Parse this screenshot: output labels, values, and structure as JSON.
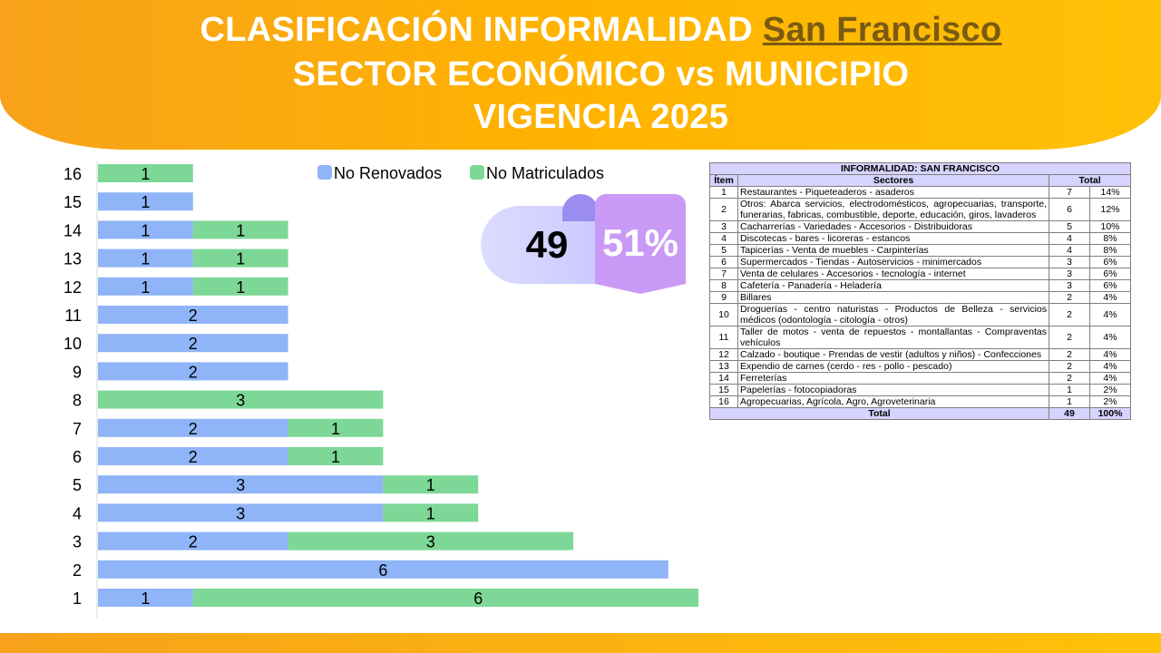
{
  "header": {
    "line1_prefix": "CLASIFICACIÓN INFORMALIDAD ",
    "line1_highlight": "San Francisco",
    "line2": "SECTOR ECONÓMICO vs MUNICIPIO",
    "line3": "VIGENCIA 2025"
  },
  "badge": {
    "count": "49",
    "percent": "51%"
  },
  "colors": {
    "no_renovados": "#8fb4f7",
    "no_matriculados": "#7dd897"
  },
  "chart_data": {
    "type": "bar",
    "orientation": "horizontal",
    "stacked": true,
    "categories": [
      "1",
      "2",
      "3",
      "4",
      "5",
      "6",
      "7",
      "8",
      "9",
      "10",
      "11",
      "12",
      "13",
      "14",
      "15",
      "16"
    ],
    "series": [
      {
        "name": "No Renovados",
        "values": [
          1,
          6,
          2,
          3,
          3,
          2,
          2,
          0,
          2,
          2,
          2,
          1,
          1,
          1,
          1,
          0
        ]
      },
      {
        "name": "No Matriculados",
        "values": [
          6,
          0,
          3,
          1,
          1,
          1,
          1,
          3,
          0,
          0,
          0,
          1,
          1,
          1,
          0,
          1
        ]
      }
    ],
    "legend": "top-center",
    "grid": false
  },
  "table": {
    "title": "INFORMALIDAD: SAN FRANCISCO",
    "col_item": "Ítem",
    "col_sectors": "Sectores",
    "col_total": "Total",
    "rows": [
      {
        "item": "1",
        "sector": "Restaurantes - Piqueteaderos - asaderos",
        "value": "7",
        "pct": "14%"
      },
      {
        "item": "2",
        "sector": "Otros: Abarca servicios, electrodomésticos, agropecuarias, transporte, funerarias, fabricas, combustible, deporte, educación, giros, lavaderos",
        "value": "6",
        "pct": "12%"
      },
      {
        "item": "3",
        "sector": "Cacharrerías - Variedades - Accesorios - Distribuidoras",
        "value": "5",
        "pct": "10%"
      },
      {
        "item": "4",
        "sector": "Discotecas - bares - licoreras - estancos",
        "value": "4",
        "pct": "8%"
      },
      {
        "item": "5",
        "sector": "Tapicerías - Venta de muebles - Carpinterías",
        "value": "4",
        "pct": "8%"
      },
      {
        "item": "6",
        "sector": "Supermercados - Tiendas - Autoservicios - minimercados",
        "value": "3",
        "pct": "6%"
      },
      {
        "item": "7",
        "sector": "Venta de celulares - Accesorios - tecnología - internet",
        "value": "3",
        "pct": "6%"
      },
      {
        "item": "8",
        "sector": "Cafetería - Panadería - Heladería",
        "value": "3",
        "pct": "6%"
      },
      {
        "item": "9",
        "sector": "Billares",
        "value": "2",
        "pct": "4%"
      },
      {
        "item": "10",
        "sector": "Droguerías - centro naturistas - Productos de Belleza - servicios médicos (odontología - citología - otros)",
        "value": "2",
        "pct": "4%"
      },
      {
        "item": "11",
        "sector": "Taller de motos - venta de repuestos - montallantas - Compraventas vehículos",
        "value": "2",
        "pct": "4%"
      },
      {
        "item": "12",
        "sector": "Calzado - boutique - Prendas de vestir (adultos y niños) - Confecciones",
        "value": "2",
        "pct": "4%"
      },
      {
        "item": "13",
        "sector": "Expendio de carnes (cerdo - res - pollo - pescado)",
        "value": "2",
        "pct": "4%"
      },
      {
        "item": "14",
        "sector": "Ferreterías",
        "value": "2",
        "pct": "4%"
      },
      {
        "item": "15",
        "sector": "Papelerías - fotocopiadoras",
        "value": "1",
        "pct": "2%"
      },
      {
        "item": "16",
        "sector": "Agropecuarias, Agrícola, Agro, Agroveterinaria",
        "value": "1",
        "pct": "2%"
      }
    ],
    "total_label": "Total",
    "total_value": "49",
    "total_pct": "100%"
  }
}
